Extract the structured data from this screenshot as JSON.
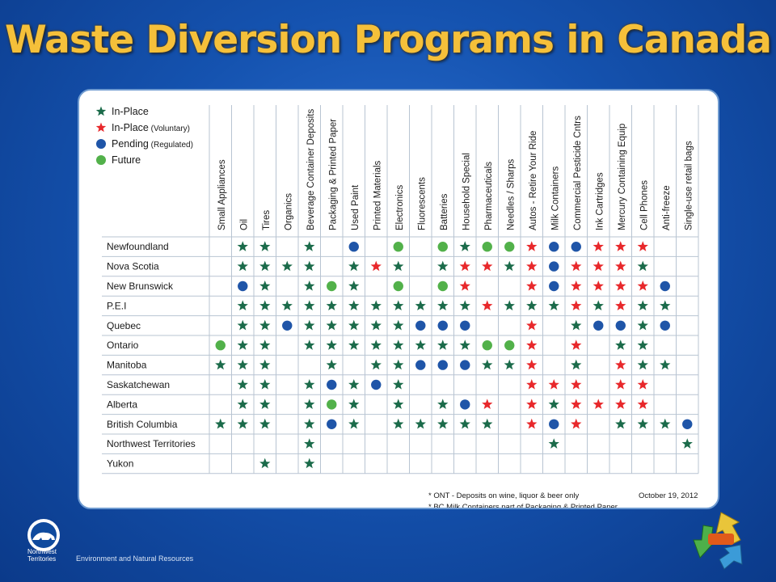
{
  "title": "Waste Diversion Programs in Canada",
  "legend": [
    {
      "symbol": "star",
      "color": "#1b6b4a",
      "label": "In-Place",
      "sub": ""
    },
    {
      "symbol": "star",
      "color": "#e8282b",
      "label": "In-Place",
      "sub": " (Voluntary)"
    },
    {
      "symbol": "circle",
      "color": "#1f55a8",
      "label": "Pending",
      "sub": " (Regulated)"
    },
    {
      "symbol": "circle",
      "color": "#52b14a",
      "label": "Future",
      "sub": ""
    }
  ],
  "columns": [
    "Small Appliances",
    "Oil",
    "Tires",
    "Organics",
    "Beverage Container Deposits",
    "Packaging & Printed Paper",
    "Used Paint",
    "Printed Materials",
    "Electronics",
    "Fluorescents",
    "Batteries",
    "Household Special",
    "Pharmaceuticals",
    "Needles / Sharps",
    "Autos - Retire Your Ride",
    "Milk Containers",
    "Commercial Pesticide Cntrs",
    "Ink Cartridges",
    "Mercury Containing Equip",
    "Cell Phones",
    "Anti-freeze",
    "Single-use retail bags"
  ],
  "rows": [
    {
      "name": "Newfoundland",
      "cells": [
        "",
        "G",
        "G",
        "",
        "G",
        "",
        "P",
        "",
        "F",
        "",
        "F",
        "G",
        "F",
        "F",
        "R",
        "P",
        "P",
        "R",
        "R",
        "R",
        "",
        ""
      ]
    },
    {
      "name": "Nova Scotia",
      "cells": [
        "",
        "G",
        "G",
        "G",
        "G",
        "",
        "G",
        "R",
        "G",
        "",
        "G",
        "R",
        "R",
        "G",
        "R",
        "P",
        "R",
        "R",
        "R",
        "G",
        "",
        ""
      ]
    },
    {
      "name": "New Brunswick",
      "cells": [
        "",
        "P",
        "G",
        "",
        "G",
        "F",
        "G",
        "",
        "F",
        "",
        "F",
        "R",
        "",
        "",
        "R",
        "P",
        "R",
        "R",
        "R",
        "R",
        "P",
        ""
      ]
    },
    {
      "name": "P.E.I",
      "cells": [
        "",
        "G",
        "G",
        "G",
        "G",
        "G",
        "G",
        "G",
        "G",
        "G",
        "G",
        "G",
        "R",
        "G",
        "G",
        "G",
        "R",
        "G",
        "R",
        "G",
        "G",
        ""
      ]
    },
    {
      "name": "Quebec",
      "cells": [
        "",
        "G",
        "G",
        "P",
        "G",
        "G",
        "G",
        "G",
        "G",
        "P",
        "P",
        "P",
        "",
        "",
        "R",
        "",
        "G",
        "P",
        "P",
        "G",
        "P",
        ""
      ]
    },
    {
      "name": "Ontario",
      "cells": [
        "F",
        "G",
        "G",
        "",
        "G",
        "G",
        "G",
        "G",
        "G",
        "G",
        "G",
        "G",
        "F",
        "F",
        "R",
        "",
        "R",
        "",
        "G",
        "G",
        "",
        ""
      ]
    },
    {
      "name": "Manitoba",
      "cells": [
        "G",
        "G",
        "G",
        "",
        "",
        "G",
        "",
        "G",
        "G",
        "P",
        "P",
        "P",
        "G",
        "G",
        "R",
        "",
        "G",
        "",
        "R",
        "G",
        "G",
        ""
      ]
    },
    {
      "name": "Saskatchewan",
      "cells": [
        "",
        "G",
        "G",
        "",
        "G",
        "P",
        "G",
        "P",
        "G",
        "",
        "",
        "",
        "",
        "",
        "R",
        "R",
        "R",
        "",
        "R",
        "R",
        "",
        ""
      ]
    },
    {
      "name": "Alberta",
      "cells": [
        "",
        "G",
        "G",
        "",
        "G",
        "F",
        "G",
        "",
        "G",
        "",
        "G",
        "P",
        "R",
        "",
        "R",
        "G",
        "R",
        "R",
        "R",
        "R",
        "",
        ""
      ]
    },
    {
      "name": "British Columbia",
      "cells": [
        "G",
        "G",
        "G",
        "",
        "G",
        "P",
        "G",
        "",
        "G",
        "G",
        "G",
        "G",
        "G",
        "",
        "R",
        "P",
        "R",
        "",
        "G",
        "G",
        "G",
        "P"
      ]
    },
    {
      "name": "Northwest Territories",
      "cells": [
        "",
        "",
        "",
        "",
        "G",
        "",
        "",
        "",
        "",
        "",
        "",
        "",
        "",
        "",
        "",
        "G",
        "",
        "",
        "",
        "",
        "",
        "G"
      ]
    },
    {
      "name": "Yukon",
      "cells": [
        "",
        "",
        "G",
        "",
        "G",
        "",
        "",
        "",
        "",
        "",
        "",
        "",
        "",
        "",
        "",
        "",
        "",
        "",
        "",
        "",
        "",
        ""
      ]
    }
  ],
  "notes": [
    "* ONT - Deposits on wine, liquor & beer only",
    "* BC Milk Containers part of Packaging & Printed Paper"
  ],
  "date": "October 19, 2012",
  "footer": {
    "org_line1": "Northwest",
    "org_line2": "Territories",
    "dept": "Environment and Natural Resources"
  },
  "colors": {
    "G": "#1b6b4a",
    "R": "#e8282b",
    "P": "#1f55a8",
    "F": "#52b14a",
    "title": "#f5c03a",
    "background": "#1553b0"
  },
  "icons": {
    "logo": "polar-bear-logo",
    "badge": "recycle-arrows-icon"
  }
}
